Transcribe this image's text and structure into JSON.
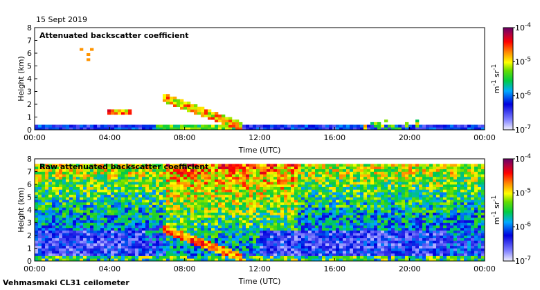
{
  "date": "15 Sept 2019",
  "footer": "Vehmasmaki CL31 ceilometer",
  "chart_data": [
    {
      "type": "heatmap",
      "title": "Attenuated backscatter coefficient",
      "xlabel": "Time (UTC)",
      "ylabel": "Height (km)",
      "x_ticks": [
        "00:00",
        "04:00",
        "08:00",
        "12:00",
        "16:00",
        "20:00",
        "00:00"
      ],
      "xlim_hours": [
        0,
        24
      ],
      "y_ticks": [
        0,
        1,
        2,
        3,
        4,
        5,
        6,
        7,
        8
      ],
      "ylim_km": [
        0,
        8
      ],
      "colorbar": {
        "scale": "log",
        "ticks": [
          "10^-7",
          "10^-6",
          "10^-5",
          "10^-4"
        ],
        "unit_text": "m-1 sr-1"
      },
      "features": [
        {
          "name": "surface aerosol layer",
          "hours": [
            0,
            24
          ],
          "height_km": [
            0,
            0.4
          ]
        },
        {
          "name": "cloud layer",
          "hours": [
            3.8,
            5.2
          ],
          "height_km": [
            1.3,
            1.5
          ]
        },
        {
          "name": "cloud traces",
          "hours": [
            2.1,
            3.3
          ],
          "height_km": [
            5.2,
            6.5
          ]
        },
        {
          "name": "descending cloud",
          "hours": [
            6.8,
            11
          ],
          "height_km": [
            0.2,
            2.6
          ]
        },
        {
          "name": "low cloud patches",
          "hours": [
            17.5,
            20.5
          ],
          "height_km": [
            0,
            0.9
          ]
        }
      ]
    },
    {
      "type": "heatmap",
      "title": "Raw attenuated backscatter coefficient",
      "xlabel": "Time (UTC)",
      "ylabel": "Height (km)",
      "x_ticks": [
        "00:00",
        "04:00",
        "08:00",
        "12:00",
        "16:00",
        "20:00",
        "00:00"
      ],
      "xlim_hours": [
        0,
        24
      ],
      "y_ticks": [
        0,
        1,
        2,
        3,
        4,
        5,
        6,
        7,
        8
      ],
      "ylim_km": [
        0,
        8
      ],
      "colorbar": {
        "scale": "log",
        "ticks": [
          "10^-7",
          "10^-6",
          "10^-5",
          "10^-4"
        ],
        "unit_text": "m-1 sr-1"
      },
      "features": [
        {
          "name": "noise dominated upper levels",
          "hours": [
            0,
            24
          ],
          "height_km": [
            3,
            7.6
          ]
        },
        {
          "name": "descending cloud",
          "hours": [
            6.8,
            11
          ],
          "height_km": [
            0.2,
            2.6
          ]
        },
        {
          "name": "surface layer",
          "hours": [
            0,
            24
          ],
          "height_km": [
            0,
            0.4
          ]
        }
      ]
    }
  ],
  "colors": {
    "background": "#ffffff",
    "axis": "#000000",
    "colormap": [
      "#e8e8f8",
      "#3030ff",
      "#0000cc",
      "#00cc66",
      "#33dd00",
      "#ffff00",
      "#ff8800",
      "#ff0000",
      "#aa0044",
      "#660066"
    ]
  }
}
